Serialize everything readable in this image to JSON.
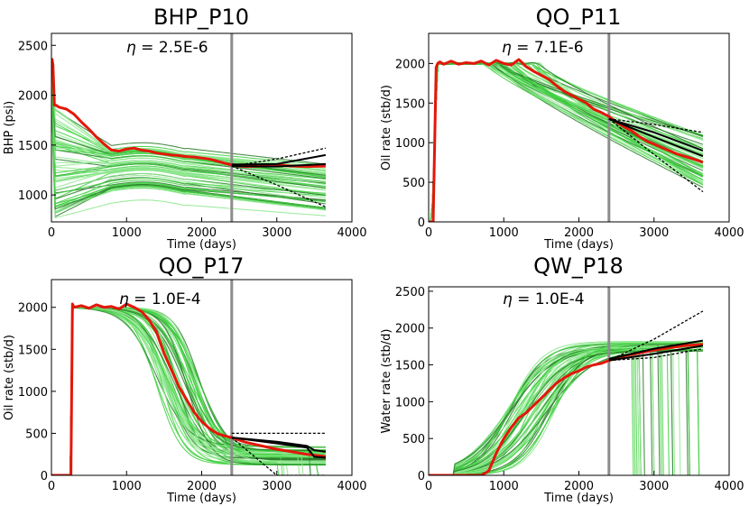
{
  "colors": {
    "ensemble_light": "#8ee88e",
    "ensemble_mid": "#3fcf3f",
    "ensemble_dark": "#2a7a2a",
    "observed": "#e3170a",
    "prediction_mean": "#000000",
    "prediction_bounds": "#000000",
    "history_end_line": "#8c8c8c"
  },
  "chart_data": [
    {
      "id": "bhp_p10",
      "type": "line",
      "title": "BHP_P10",
      "annotation": "η = 2.5E-6",
      "annotation_symbol": "η",
      "annotation_value": " = 2.5E-6",
      "xlabel": "Time (days)",
      "ylabel": "BHP (psi)",
      "xlim": [
        0,
        4000
      ],
      "ylim": [
        730,
        2620
      ],
      "xticks": [
        0,
        1000,
        2000,
        3000,
        4000
      ],
      "yticks": [
        1000,
        1500,
        2000,
        2500
      ],
      "history_end": 2400,
      "ensemble": {
        "shape": "bhp",
        "count": 55,
        "start_range": [
          730,
          1900
        ],
        "end_range": [
          700,
          1360
        ],
        "note": "ensemble of simulated BHP curves (green)"
      },
      "observed": {
        "x": [
          0,
          10,
          20,
          40,
          60,
          100,
          200,
          300,
          400,
          500,
          600,
          700,
          800,
          900,
          1000,
          1100,
          1200,
          1300,
          1400,
          1500,
          1600,
          1700,
          1800,
          1900,
          2000,
          2100,
          2200,
          2300,
          2400,
          2500,
          2600,
          2800,
          3000,
          3200,
          3400,
          3650
        ],
        "y": [
          2330,
          2360,
          2300,
          1900,
          1900,
          1880,
          1860,
          1810,
          1730,
          1660,
          1580,
          1510,
          1450,
          1440,
          1460,
          1470,
          1450,
          1440,
          1420,
          1410,
          1400,
          1395,
          1385,
          1380,
          1370,
          1360,
          1340,
          1320,
          1300,
          1290,
          1285,
          1290,
          1300,
          1290,
          1285,
          1290
        ]
      },
      "prediction": {
        "x": [
          2400,
          3000,
          3650
        ],
        "mean": [
          1290,
          1285,
          1310
        ],
        "upper": [
          1290,
          1360,
          1470
        ],
        "lower": [
          1290,
          1100,
          880
        ],
        "inner_high": [
          1305,
          1310,
          1400
        ]
      }
    },
    {
      "id": "qo_p11",
      "type": "line",
      "title": "QO_P11",
      "annotation": "η = 7.1E-6",
      "annotation_symbol": "η",
      "annotation_value": " = 7.1E-6",
      "xlabel": "Time (days)",
      "ylabel": "Oil rate (stb/d)",
      "xlim": [
        0,
        4000
      ],
      "ylim": [
        0,
        2380
      ],
      "xticks": [
        0,
        1000,
        2000,
        3000,
        4000
      ],
      "yticks": [
        0,
        500,
        1000,
        1500,
        2000
      ],
      "history_end": 2400,
      "ensemble": {
        "shape": "decline",
        "count": 55,
        "plateau": 2000,
        "ramp": [
          0,
          120
        ],
        "decline_start_range": [
          700,
          1500
        ],
        "end_range": [
          420,
          1100
        ]
      },
      "observed": {
        "x": [
          0,
          60,
          100,
          120,
          150,
          200,
          300,
          400,
          500,
          600,
          700,
          800,
          900,
          1000,
          1100,
          1200,
          1300,
          1400,
          1500,
          1600,
          1700,
          1800,
          1900,
          2000,
          2100,
          2200,
          2300,
          2400,
          2500,
          2600,
          2700,
          2800,
          2900,
          3000,
          3100,
          3200,
          3300,
          3400,
          3500,
          3600,
          3650
        ],
        "y": [
          0,
          0,
          1950,
          2000,
          2020,
          1990,
          2030,
          1990,
          2010,
          2000,
          2030,
          1980,
          2040,
          2000,
          1980,
          2050,
          1960,
          1900,
          1850,
          1800,
          1720,
          1650,
          1600,
          1550,
          1500,
          1420,
          1380,
          1330,
          1260,
          1200,
          1150,
          1080,
          1020,
          980,
          940,
          900,
          860,
          830,
          800,
          770,
          750
        ]
      },
      "prediction": {
        "x": [
          2400,
          3000,
          3650
        ],
        "mean": [
          1300,
          1070,
          830
        ],
        "upper": [
          1300,
          1230,
          1130
        ],
        "lower": [
          1300,
          850,
          380
        ],
        "inner_high": [
          1300,
          1130,
          900
        ]
      }
    },
    {
      "id": "qo_p17",
      "type": "line",
      "title": "QO_P17",
      "annotation": "η = 1.0E-4",
      "annotation_symbol": "η",
      "annotation_value": " = 1.0E-4",
      "xlabel": "Time (days)",
      "ylabel": "Oil rate (stb/d)",
      "xlim": [
        0,
        4000
      ],
      "ylim": [
        0,
        2330
      ],
      "xticks": [
        0,
        1000,
        2000,
        3000,
        4000
      ],
      "yticks": [
        0,
        500,
        1000,
        1500,
        2000
      ],
      "history_end": 2400,
      "ensemble": {
        "shape": "sigmoid_drop",
        "count": 55,
        "plateau": 2000,
        "ramp": [
          270,
          290
        ],
        "mid_range": [
          1400,
          2000
        ],
        "end_range": [
          120,
          350
        ]
      },
      "observed": {
        "x": [
          0,
          200,
          260,
          280,
          300,
          400,
          500,
          600,
          700,
          800,
          900,
          1000,
          1100,
          1200,
          1300,
          1400,
          1500,
          1600,
          1700,
          1800,
          1900,
          2000,
          2100,
          2200,
          2300,
          2400,
          2500,
          2600,
          2800,
          3000,
          3200,
          3400,
          3600,
          3650
        ],
        "y": [
          0,
          0,
          0,
          2040,
          2000,
          2020,
          1990,
          2030,
          2000,
          2010,
          1980,
          2040,
          2000,
          1950,
          1850,
          1700,
          1450,
          1250,
          1050,
          900,
          750,
          640,
          560,
          500,
          470,
          450,
          420,
          390,
          350,
          310,
          280,
          250,
          230,
          220
        ]
      },
      "prediction": {
        "x": [
          2400,
          3000,
          3400,
          3500,
          3650
        ],
        "mean": [
          450,
          380,
          330,
          220,
          210
        ],
        "upper": [
          500,
          500,
          500,
          500,
          500
        ],
        "lower": [
          450,
          0,
          0,
          0,
          0
        ],
        "inner_high": [
          450,
          400,
          350,
          300,
          280
        ]
      }
    },
    {
      "id": "qw_p18",
      "type": "line",
      "title": "QW_P18",
      "annotation": "η = 1.0E-4",
      "annotation_symbol": "η",
      "annotation_value": " = 1.0E-4",
      "xlabel": "Time (days)",
      "ylabel": "Water rate (stb/d)",
      "xlim": [
        0,
        4000
      ],
      "ylim": [
        0,
        2560
      ],
      "xticks": [
        0,
        1000,
        2000,
        3000,
        4000
      ],
      "yticks": [
        0,
        500,
        1000,
        1500,
        2000,
        2500
      ],
      "history_end": 2400,
      "ensemble": {
        "shape": "sigmoid_rise",
        "count": 55,
        "plateau_range": [
          1680,
          1820
        ],
        "mid_range": [
          1000,
          1700
        ],
        "dropouts": true
      },
      "observed": {
        "x": [
          0,
          500,
          700,
          800,
          900,
          1000,
          1100,
          1200,
          1300,
          1400,
          1500,
          1600,
          1700,
          1800,
          1900,
          2000,
          2100,
          2200,
          2300,
          2400,
          2500,
          2600,
          2800,
          3000,
          3200,
          3400,
          3650
        ],
        "y": [
          0,
          0,
          0,
          60,
          300,
          500,
          650,
          780,
          850,
          950,
          1050,
          1150,
          1250,
          1320,
          1380,
          1420,
          1470,
          1500,
          1520,
          1560,
          1590,
          1620,
          1660,
          1700,
          1730,
          1760,
          1780
        ]
      },
      "prediction": {
        "x": [
          2400,
          3000,
          3650
        ],
        "mean": [
          1560,
          1650,
          1760
        ],
        "upper": [
          1560,
          1850,
          2230
        ],
        "lower": [
          1560,
          1600,
          1720
        ],
        "inner_high": [
          1580,
          1720,
          1830
        ]
      }
    }
  ]
}
